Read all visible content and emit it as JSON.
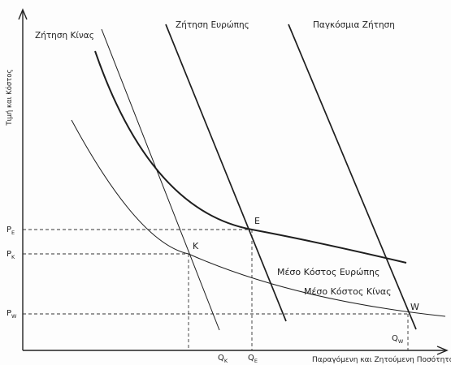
{
  "diagram": {
    "y_axis_label": "Τιμή και Κόστος",
    "x_axis_label": "Παραγόμενη και Ζητούμενη Ποσότητα",
    "curves": {
      "china_demand": "Ζήτηση Κίνας",
      "europe_demand": "Ζήτηση Ευρώπης",
      "global_demand": "Παγκόσμια Ζήτηση",
      "europe_avg_cost": "Μέσο Κόστος Ευρώπης",
      "china_avg_cost": "Μέσο Κόστος Κίνας"
    },
    "points": {
      "europe": "E",
      "china": "K",
      "world": "W"
    },
    "price_ticks": {
      "p_e": {
        "base": "P",
        "sub": "E"
      },
      "p_k": {
        "base": "P",
        "sub": "K"
      },
      "p_w": {
        "base": "P",
        "sub": "W"
      }
    },
    "quantity_ticks": {
      "q_k": {
        "base": "Q",
        "sub": "K"
      },
      "q_e": {
        "base": "Q",
        "sub": "E"
      },
      "q_w": {
        "base": "Q",
        "sub": "W"
      }
    }
  }
}
